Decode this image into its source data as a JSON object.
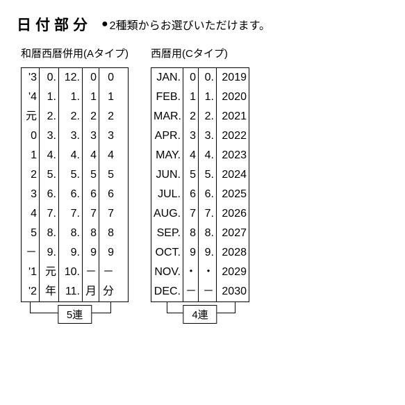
{
  "header": {
    "title": "日付部分",
    "subtitle": "2種類からお選びいただけます。"
  },
  "left": {
    "title": "和暦西暦併用(Aタイプ)",
    "label": "5連",
    "widths": [
      26,
      28,
      34,
      24,
      24
    ],
    "bands": [
      [
        "'3",
        "'4",
        "元",
        "0",
        "1",
        "2",
        "3",
        "4",
        "5",
        "－",
        "'1",
        "'2"
      ],
      [
        "0.",
        "1.",
        "2.",
        "3.",
        "4.",
        "5.",
        "6.",
        "7.",
        "8.",
        "9.",
        "元",
        "年"
      ],
      [
        "12.",
        "1.",
        "2.",
        "3.",
        "4.",
        "5.",
        "6.",
        "7.",
        "8.",
        "9.",
        "10.",
        "11."
      ],
      [
        "0",
        "1",
        "2",
        "3",
        "4",
        "5",
        "6",
        "7",
        "8",
        "9",
        "－",
        "月"
      ],
      [
        "0",
        "1",
        "2",
        "3",
        "4",
        "5",
        "6",
        "7",
        "8",
        "9",
        "－",
        "分"
      ]
    ]
  },
  "right": {
    "title": "西暦用(Cタイプ)",
    "label": "4連",
    "widths": [
      46,
      22,
      26,
      46
    ],
    "bands": [
      [
        "JAN.",
        "FEB.",
        "MAR.",
        "APR.",
        "MAY.",
        "JUN.",
        "JUL.",
        "AUG.",
        "SEP.",
        "OCT.",
        "NOV.",
        "DEC."
      ],
      [
        "0",
        "1",
        "2",
        "3",
        "4",
        "5",
        "6",
        "7",
        "8",
        "9",
        "・",
        "－"
      ],
      [
        "0.",
        "1.",
        "2.",
        "3.",
        "4.",
        "5.",
        "6.",
        "7.",
        "8.",
        "9.",
        "・",
        "－"
      ],
      [
        "2019",
        "2020",
        "2021",
        "2022",
        "2023",
        "2024",
        "2025",
        "2026",
        "2027",
        "2028",
        "2029",
        "2030"
      ]
    ]
  }
}
